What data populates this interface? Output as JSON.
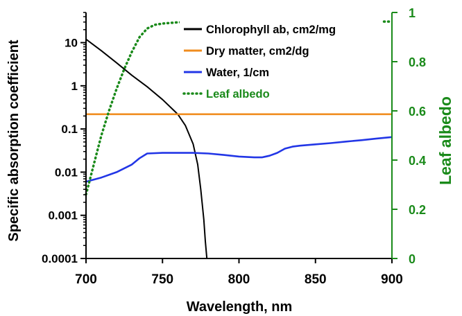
{
  "chart_data": {
    "type": "line",
    "xlabel": "Wavelength, nm",
    "ylabel": "Specific absorption coefficient",
    "y2label": "Leaf albedo",
    "xlim": [
      700,
      900
    ],
    "ylim": [
      0.0001,
      50
    ],
    "yscale": "log",
    "y2lim": [
      0,
      1
    ],
    "xticks": [
      700,
      750,
      800,
      850,
      900
    ],
    "yticks": [
      {
        "value": 10,
        "label": "10"
      },
      {
        "value": 1,
        "label": "1"
      },
      {
        "value": 0.1,
        "label": "0.1"
      },
      {
        "value": 0.01,
        "label": "0.01"
      },
      {
        "value": 0.001,
        "label": "0.001"
      },
      {
        "value": 0.0001,
        "label": "0.0001"
      }
    ],
    "y2ticks": [
      {
        "value": 0,
        "label": "0"
      },
      {
        "value": 0.2,
        "label": "0.2"
      },
      {
        "value": 0.4,
        "label": "0.4"
      },
      {
        "value": 0.6,
        "label": "0.6"
      },
      {
        "value": 0.8,
        "label": "0.8"
      },
      {
        "value": 1,
        "label": "1"
      }
    ],
    "grid": false,
    "legend_position": "top-right",
    "series": [
      {
        "name": "Chlorophyll ab, cm2/mg",
        "axis": "left",
        "color": "#000000",
        "style": "solid",
        "x": [
          700,
          710,
          720,
          730,
          740,
          750,
          760,
          765,
          770,
          773,
          775,
          777,
          778,
          779
        ],
        "y": [
          12,
          6.5,
          3.4,
          1.75,
          0.95,
          0.48,
          0.22,
          0.12,
          0.045,
          0.015,
          0.004,
          0.0008,
          0.00025,
          0.0001
        ]
      },
      {
        "name": "Dry matter, cm2/dg",
        "axis": "left",
        "color": "#f08c1e",
        "style": "solid",
        "x": [
          700,
          900
        ],
        "y": [
          0.22,
          0.22
        ]
      },
      {
        "name": "Water, 1/cm",
        "axis": "left",
        "color": "#2236e6",
        "style": "solid",
        "x": [
          700,
          710,
          720,
          730,
          735,
          740,
          750,
          760,
          770,
          780,
          790,
          800,
          810,
          815,
          820,
          825,
          830,
          835,
          840,
          850,
          860,
          870,
          880,
          890,
          900
        ],
        "y": [
          0.006,
          0.0075,
          0.01,
          0.015,
          0.021,
          0.027,
          0.028,
          0.028,
          0.028,
          0.027,
          0.025,
          0.023,
          0.022,
          0.022,
          0.024,
          0.028,
          0.035,
          0.039,
          0.041,
          0.044,
          0.047,
          0.051,
          0.055,
          0.06,
          0.065
        ]
      },
      {
        "name": "Leaf albedo",
        "axis": "right",
        "color": "#1a8a1a",
        "style": "dotted",
        "x": [
          700,
          705,
          710,
          715,
          720,
          725,
          730,
          735,
          740,
          745,
          750,
          760,
          770,
          780,
          800,
          850,
          900
        ],
        "y": [
          0.26,
          0.38,
          0.5,
          0.6,
          0.69,
          0.77,
          0.84,
          0.9,
          0.935,
          0.95,
          0.955,
          0.96,
          0.962,
          0.963,
          0.963,
          0.963,
          0.963
        ]
      }
    ]
  }
}
